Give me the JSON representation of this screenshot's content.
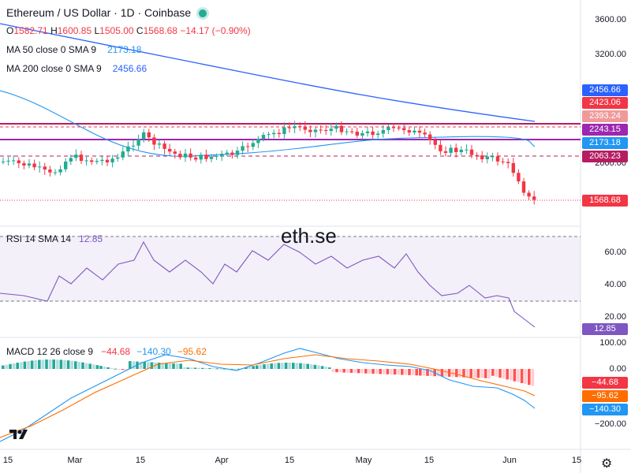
{
  "header": {
    "title": "Ethereum / US Dollar · 1D · Coinbase",
    "open_label": "O",
    "open": "1582.71",
    "high_label": "H",
    "high": "1600.85",
    "low_label": "L",
    "low": "1505.00",
    "close_label": "C",
    "close": "1568.68",
    "change": "−14.17 (−0.90%)"
  },
  "indicators": {
    "ma50": {
      "label": "MA 50 close 0 SMA 9",
      "value": "2173.18",
      "color": "#2196f3"
    },
    "ma200": {
      "label": "MA 200 close 0 SMA 9",
      "value": "2456.66",
      "color": "#2962ff"
    },
    "rsi": {
      "label": "RSI 14 SMA 14",
      "value": "12.85",
      "color": "#7e57c2"
    },
    "macd": {
      "label": "MACD 12 26 close 9",
      "hist": "−44.68",
      "macd": "−140.30",
      "signal": "−95.62"
    }
  },
  "watermark": "eth.se",
  "price_axis": [
    "3600.00",
    "3200.00",
    "2000.00"
  ],
  "rsi_axis": [
    "60.00",
    "40.00",
    "20.00"
  ],
  "macd_axis": [
    "100.00",
    "0.00",
    "−200.00"
  ],
  "price_tags": [
    {
      "text": "2456.66",
      "color": "#2962ff"
    },
    {
      "text": "2423.06",
      "color": "#f23645"
    },
    {
      "text": "2393.24",
      "color": "#ef9a9a"
    },
    {
      "text": "2243.15",
      "color": "#9c27b0"
    },
    {
      "text": "2173.18",
      "color": "#2196f3"
    },
    {
      "text": "2063.23",
      "color": "#b71c63"
    },
    {
      "text": "1568.68",
      "color": "#f23645"
    }
  ],
  "rsi_tag": {
    "text": "12.85",
    "color": "#7e57c2"
  },
  "macd_tags": [
    {
      "text": "−44.68",
      "color": "#f23645"
    },
    {
      "text": "−95.62",
      "color": "#ff6d00"
    },
    {
      "text": "−140.30",
      "color": "#2196f3"
    }
  ],
  "time_axis": [
    "15",
    "Mar",
    "15",
    "Apr",
    "15",
    "May",
    "15",
    "Jun",
    "15"
  ],
  "colors": {
    "up": "#22ab94",
    "down": "#f23645",
    "grid": "#f0f3fa"
  }
}
